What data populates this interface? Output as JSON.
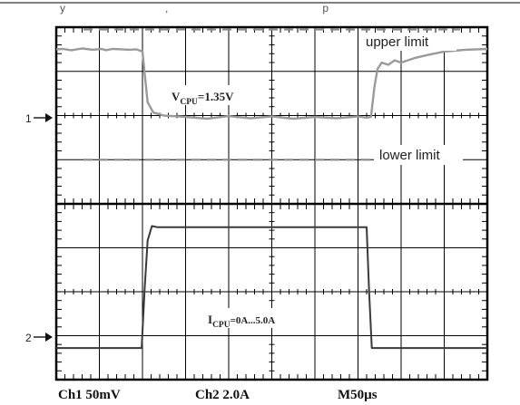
{
  "chart_data": {
    "type": "line",
    "panels": [
      {
        "channel_marker": "1",
        "annotation": {
          "main": "V",
          "sub": "CPU",
          "rest": "=1.35V"
        },
        "reference_lines": [
          {
            "label": "upper limit",
            "value": 2.0
          },
          {
            "label": "lower limit",
            "value": -0.95
          }
        ],
        "series": [
          {
            "x": [
              0,
              0.15,
              0.35,
              0.6,
              0.85,
              1.05,
              1.15,
              1.3,
              1.5,
              1.7,
              1.85,
              2.0,
              2.05,
              2.12,
              2.25,
              2.5,
              3.0,
              3.5,
              4.0,
              4.5,
              5.0,
              5.5,
              6.0,
              6.5,
              7.0,
              7.2,
              7.3,
              7.38,
              7.45,
              7.55,
              7.7,
              7.85,
              8.0,
              8.3,
              8.6,
              9.0,
              9.5,
              10.0
            ],
            "y": [
              1.55,
              1.56,
              1.53,
              1.57,
              1.54,
              1.56,
              1.53,
              1.56,
              1.55,
              1.54,
              1.55,
              1.5,
              1.0,
              0.35,
              0.12,
              0.05,
              0.02,
              -0.02,
              0.04,
              -0.01,
              0.03,
              -0.02,
              0.02,
              -0.01,
              0.03,
              0.0,
              0.02,
              0.7,
              1.1,
              1.25,
              1.2,
              1.3,
              1.25,
              1.35,
              1.42,
              1.5,
              1.54,
              1.56
            ]
          }
        ]
      },
      {
        "channel_marker": "2",
        "annotation": {
          "main": "I",
          "sub": "CPU",
          "rest": "=0A...5.0A"
        },
        "reference_lines": [],
        "series": [
          {
            "x": [
              0,
              1.98,
              2.05,
              2.12,
              2.22,
              2.35,
              2.5,
              3.0,
              4.0,
              5.0,
              6.0,
              7.0,
              7.2,
              7.26,
              7.32,
              7.4,
              10.0
            ],
            "y": [
              -0.5,
              -0.5,
              2.2,
              4.4,
              5.05,
              5.0,
              5.0,
              5.0,
              5.0,
              5.0,
              5.0,
              5.0,
              5.0,
              2.0,
              -0.5,
              -0.5,
              -0.5
            ]
          }
        ]
      }
    ],
    "divisions": {
      "x": 10,
      "y_per_panel": 4
    },
    "grid": true,
    "footer": [
      "Ch1 50mV",
      "Ch2 2.0A",
      "M50µs"
    ],
    "colors": {
      "ch1": "#9a9a9a",
      "ch2": "#3a3a3a",
      "grid": "#000000",
      "dash": "#8a8a8a"
    }
  },
  "header": {
    "cut_text": "y                                 ,                                                   p"
  }
}
